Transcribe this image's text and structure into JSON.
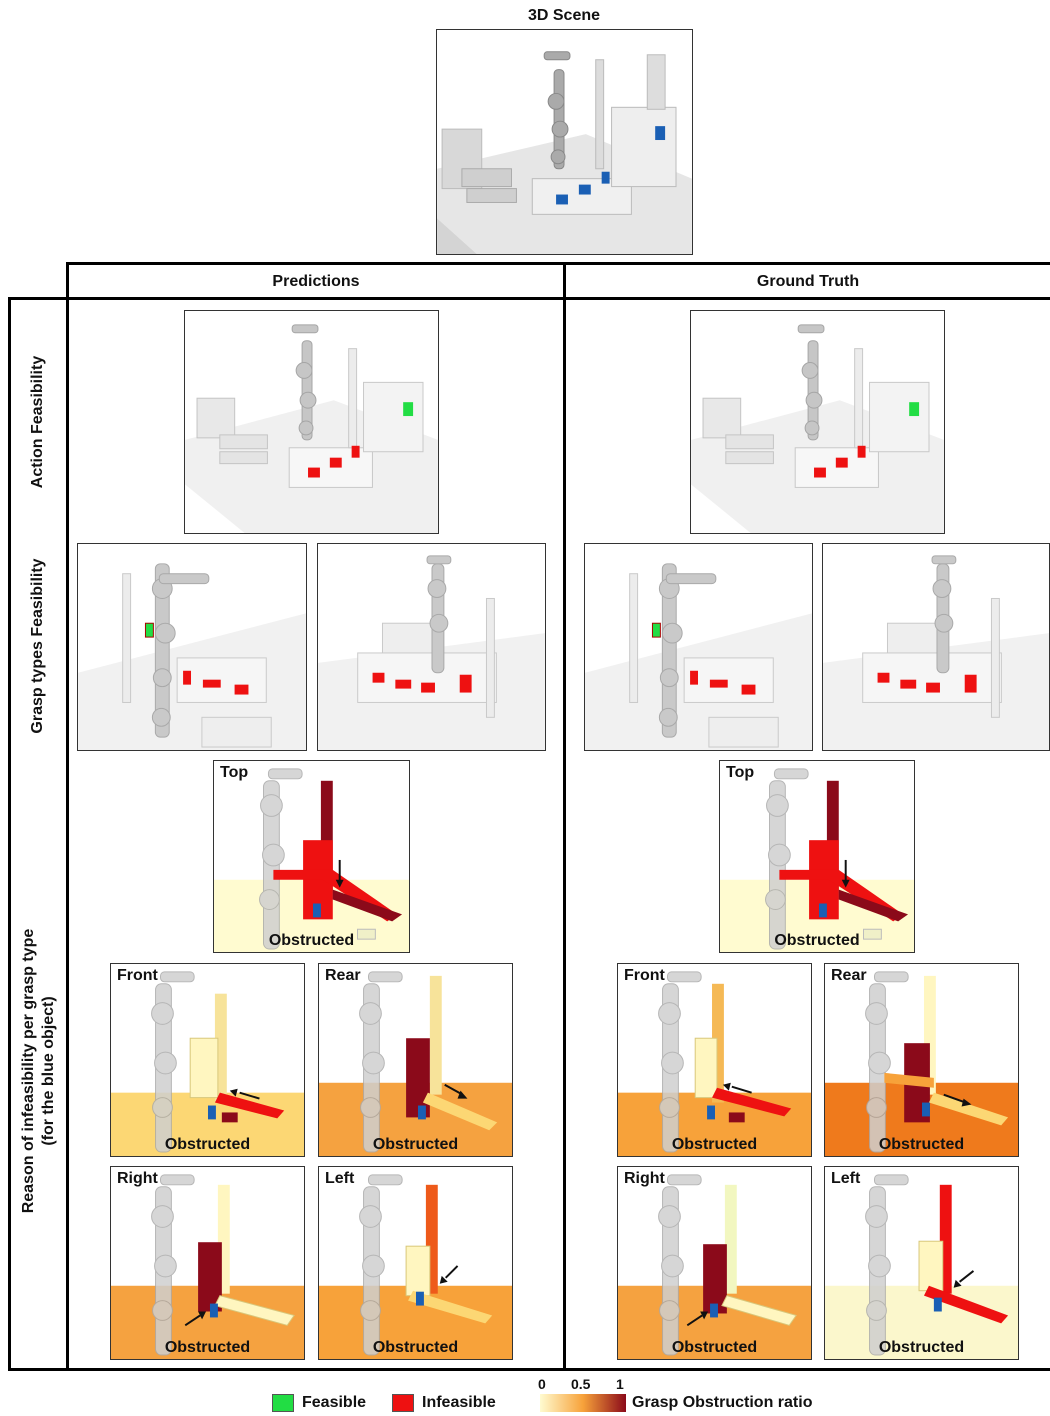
{
  "scene_title": "3D Scene",
  "columns": {
    "predictions": "Predictions",
    "ground_truth": "Ground Truth"
  },
  "row_labels": {
    "action": "Action Feasibility",
    "grasp_types": "Grasp types Feasibility",
    "reason_line1": "Reason of infeasibility per grasp type",
    "reason_line2": "(for the blue object)"
  },
  "grasp_panels": {
    "top": "Top",
    "front": "Front",
    "rear": "Rear",
    "right": "Right",
    "left": "Left",
    "status": "Obstructed"
  },
  "legend": {
    "feasible": "Feasible",
    "infeasible": "Infeasible",
    "ratio_label": "Grasp Obstruction ratio",
    "tick_0": "0",
    "tick_05": "0.5",
    "tick_1": "1"
  },
  "colors": {
    "feasible": "#22dd44",
    "infeasible": "#ee1111",
    "blue_object": "#1a5fb4",
    "scale_low": "#fffbd0",
    "scale_mid": "#f7a23a",
    "scale_high": "#8b0a1a"
  }
}
